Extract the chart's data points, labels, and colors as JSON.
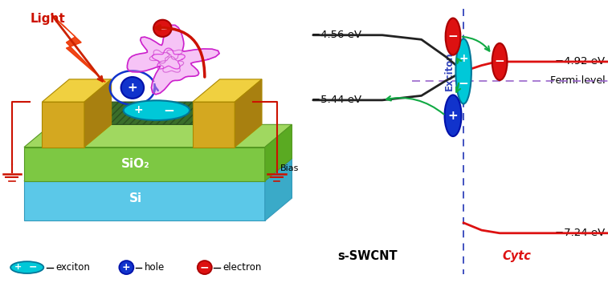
{
  "bg_color": "#ffffff",
  "left_panel": {
    "si_color": "#5bc8e8",
    "si_side_color": "#3aaac8",
    "sio2_color": "#7dc843",
    "sio2_top_color": "#a0d860",
    "sio2_side_color": "#5aaa22",
    "electrode_color": "#d4a820",
    "electrode_top_color": "#f0d040",
    "electrode_side_color": "#a88010",
    "swcnt_color": "#3a6e2a",
    "swcnt_top_color": "#4a8a3a",
    "wire_color": "#cc1100",
    "labels": {
      "sio2": "SiO₂",
      "si": "Si",
      "bias": "Bias",
      "light": "Light"
    }
  },
  "right_panel": {
    "labels": {
      "swcnt_top": "−4.56 eV",
      "swcnt_bottom": "−5.44 eV",
      "fermi_ev": "−4.92 eV",
      "cytc_ev": "−7.24 eV",
      "fermi_label": "Fermi level",
      "swcnt_label": "s-SWCNT",
      "cytc_label": "Cytc",
      "exciton_label": "Exciton"
    },
    "colors": {
      "swcnt_lines": "#222222",
      "fermi_dashed": "#9966cc",
      "cytc_line": "#dd1111",
      "dashed_vert": "#3344bb",
      "exciton_fill": "#00c8d8",
      "hole_fill": "#1133cc",
      "electron_fill": "#dd1111",
      "arrow_color": "#11aa44"
    }
  },
  "legend": {
    "exciton_label": "exciton",
    "hole_label": "hole",
    "electron_label": "electron"
  }
}
